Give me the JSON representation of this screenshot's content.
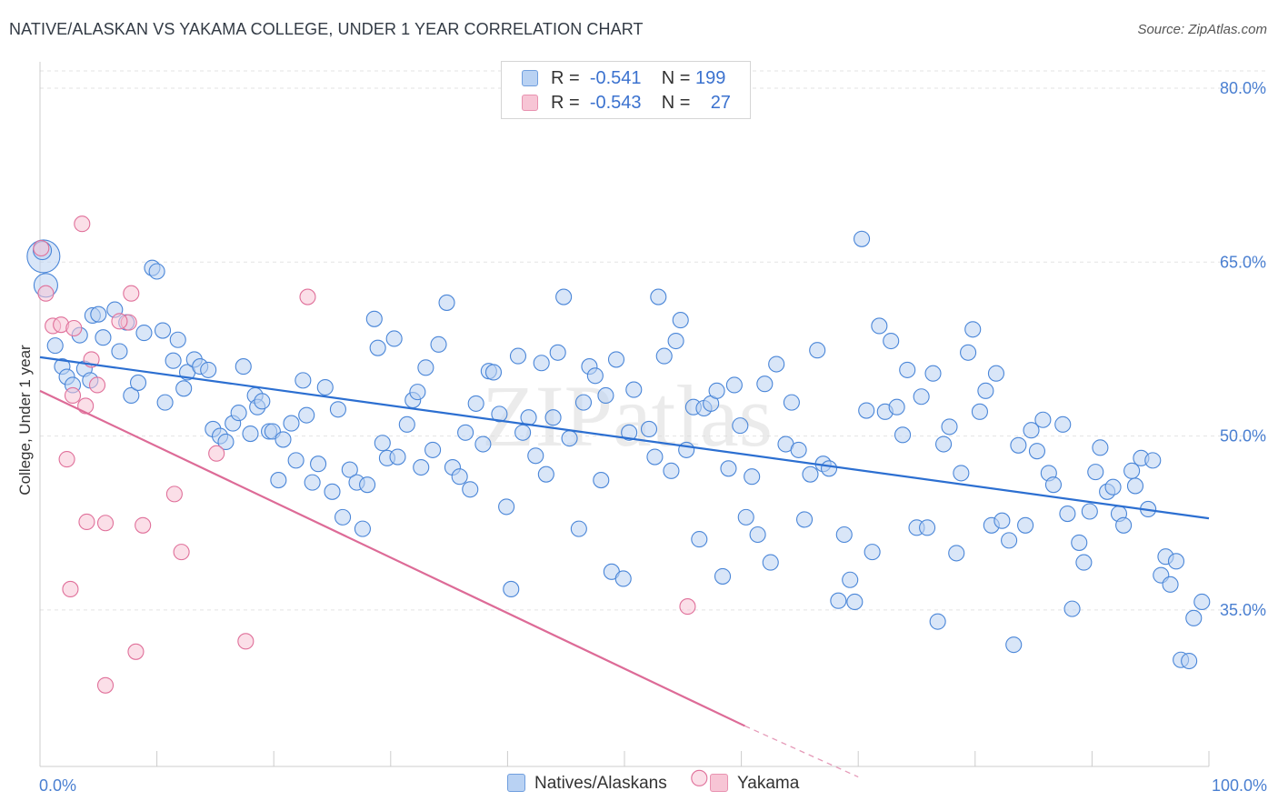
{
  "title": "NATIVE/ALASKAN VS YAKAMA COLLEGE, UNDER 1 YEAR CORRELATION CHART",
  "source": "Source: ZipAtlas.com",
  "watermark": "ZIPatlas",
  "colors": {
    "blue": "#4a86d8",
    "blue_fill": "#b9d2f3",
    "pink": "#e0709a",
    "pink_fill": "#f7c5d5",
    "tick": "#4a7fd1",
    "grid": "#e3e3e3"
  },
  "legend": {
    "rows": [
      {
        "r_label": "R =",
        "r_value": "-0.541",
        "n_label": "N =",
        "n_value": "199"
      },
      {
        "r_label": "R =",
        "r_value": "-0.543",
        "n_label": "N =",
        "n_value": "27"
      }
    ]
  },
  "bottom_legend": {
    "blue": "Natives/Alaskans",
    "pink": "Yakama"
  },
  "chart_data": {
    "type": "scatter",
    "title": "NATIVE/ALASKAN VS YAKAMA COLLEGE, UNDER 1 YEAR CORRELATION CHART",
    "xlabel": "",
    "ylabel": "College, Under 1 year",
    "xlim": [
      0,
      100
    ],
    "ylim": [
      20.5,
      83
    ],
    "x_tick_labels": [
      "0.0%",
      "100.0%"
    ],
    "y_ticks": [
      35,
      50,
      65,
      80
    ],
    "y_tick_labels": [
      "35.0%",
      "50.0%",
      "65.0%",
      "80.0%"
    ],
    "grid": "horizontal dashed",
    "legend_placement": "top-center",
    "series": [
      {
        "name": "Natives/Alaskans",
        "r": -0.541,
        "n": 199,
        "trend": {
          "x": [
            0,
            100
          ],
          "y": [
            56.8,
            42.9
          ]
        },
        "points": [
          [
            0.3,
            65.5
          ],
          [
            0.5,
            63.0
          ],
          [
            1.3,
            57.8
          ],
          [
            1.9,
            56.0
          ],
          [
            2.3,
            55.1
          ],
          [
            2.8,
            54.4
          ],
          [
            3.4,
            58.7
          ],
          [
            3.8,
            55.8
          ],
          [
            4.3,
            54.8
          ],
          [
            4.5,
            60.4
          ],
          [
            5.0,
            60.5
          ],
          [
            5.4,
            58.5
          ],
          [
            6.4,
            60.9
          ],
          [
            6.8,
            57.3
          ],
          [
            7.4,
            59.8
          ],
          [
            7.8,
            53.5
          ],
          [
            8.4,
            54.6
          ],
          [
            8.9,
            58.9
          ],
          [
            9.6,
            64.5
          ],
          [
            10.0,
            64.2
          ],
          [
            10.5,
            59.1
          ],
          [
            10.7,
            52.9
          ],
          [
            11.4,
            56.5
          ],
          [
            11.8,
            58.3
          ],
          [
            12.3,
            54.1
          ],
          [
            12.6,
            55.5
          ],
          [
            13.2,
            56.6
          ],
          [
            13.7,
            56.0
          ],
          [
            14.4,
            55.7
          ],
          [
            14.8,
            50.6
          ],
          [
            15.4,
            50.0
          ],
          [
            15.9,
            49.5
          ],
          [
            16.5,
            51.1
          ],
          [
            17.0,
            52.0
          ],
          [
            17.4,
            56.0
          ],
          [
            18.0,
            50.2
          ],
          [
            18.4,
            53.5
          ],
          [
            18.6,
            52.5
          ],
          [
            19.0,
            53.0
          ],
          [
            19.6,
            50.4
          ],
          [
            19.9,
            50.4
          ],
          [
            20.4,
            46.2
          ],
          [
            20.8,
            49.7
          ],
          [
            21.5,
            51.1
          ],
          [
            21.9,
            47.9
          ],
          [
            22.5,
            54.8
          ],
          [
            22.8,
            51.8
          ],
          [
            23.3,
            46.0
          ],
          [
            23.8,
            47.6
          ],
          [
            24.4,
            54.2
          ],
          [
            25.0,
            45.2
          ],
          [
            25.5,
            52.3
          ],
          [
            25.9,
            43.0
          ],
          [
            26.5,
            47.1
          ],
          [
            27.1,
            46.0
          ],
          [
            27.6,
            42.0
          ],
          [
            28.0,
            45.8
          ],
          [
            28.6,
            60.1
          ],
          [
            28.9,
            57.6
          ],
          [
            29.3,
            49.4
          ],
          [
            29.7,
            48.1
          ],
          [
            30.3,
            58.4
          ],
          [
            30.6,
            48.2
          ],
          [
            31.4,
            51.0
          ],
          [
            31.9,
            53.1
          ],
          [
            32.3,
            53.8
          ],
          [
            32.6,
            47.3
          ],
          [
            33.0,
            55.9
          ],
          [
            33.6,
            48.8
          ],
          [
            34.1,
            57.9
          ],
          [
            34.8,
            61.5
          ],
          [
            35.3,
            47.3
          ],
          [
            35.9,
            46.5
          ],
          [
            36.4,
            50.3
          ],
          [
            36.8,
            45.4
          ],
          [
            37.3,
            52.8
          ],
          [
            37.9,
            49.3
          ],
          [
            38.4,
            55.6
          ],
          [
            38.8,
            55.5
          ],
          [
            39.3,
            51.9
          ],
          [
            39.9,
            43.9
          ],
          [
            40.3,
            36.8
          ],
          [
            40.9,
            56.9
          ],
          [
            41.3,
            50.3
          ],
          [
            41.8,
            51.6
          ],
          [
            42.4,
            48.3
          ],
          [
            42.9,
            56.3
          ],
          [
            43.3,
            46.7
          ],
          [
            43.9,
            51.6
          ],
          [
            44.3,
            57.2
          ],
          [
            44.8,
            62.0
          ],
          [
            45.3,
            49.8
          ],
          [
            46.1,
            42.0
          ],
          [
            46.5,
            52.9
          ],
          [
            47.0,
            56.0
          ],
          [
            47.5,
            55.2
          ],
          [
            48.0,
            46.2
          ],
          [
            48.4,
            53.5
          ],
          [
            48.9,
            38.3
          ],
          [
            49.3,
            56.6
          ],
          [
            49.9,
            37.7
          ],
          [
            50.4,
            50.3
          ],
          [
            50.8,
            54.0
          ],
          [
            52.1,
            50.6
          ],
          [
            52.6,
            48.2
          ],
          [
            52.9,
            62.0
          ],
          [
            53.4,
            56.9
          ],
          [
            54.0,
            47.0
          ],
          [
            54.4,
            58.2
          ],
          [
            54.8,
            60.0
          ],
          [
            55.3,
            48.8
          ],
          [
            55.9,
            52.5
          ],
          [
            56.4,
            41.1
          ],
          [
            56.8,
            52.4
          ],
          [
            57.4,
            52.8
          ],
          [
            57.9,
            53.9
          ],
          [
            58.4,
            37.9
          ],
          [
            58.9,
            47.2
          ],
          [
            59.4,
            54.4
          ],
          [
            59.9,
            50.9
          ],
          [
            60.4,
            43.0
          ],
          [
            60.9,
            46.5
          ],
          [
            61.4,
            41.5
          ],
          [
            62.0,
            54.5
          ],
          [
            62.5,
            39.1
          ],
          [
            63.0,
            56.2
          ],
          [
            63.8,
            49.3
          ],
          [
            64.3,
            52.9
          ],
          [
            64.9,
            48.8
          ],
          [
            65.4,
            42.8
          ],
          [
            65.9,
            46.7
          ],
          [
            66.5,
            57.4
          ],
          [
            67.0,
            47.6
          ],
          [
            67.5,
            47.2
          ],
          [
            68.3,
            35.8
          ],
          [
            68.8,
            41.5
          ],
          [
            69.3,
            37.6
          ],
          [
            69.7,
            35.7
          ],
          [
            70.3,
            67.0
          ],
          [
            70.7,
            52.2
          ],
          [
            71.2,
            40.0
          ],
          [
            71.8,
            59.5
          ],
          [
            72.3,
            52.1
          ],
          [
            72.8,
            58.2
          ],
          [
            73.3,
            52.5
          ],
          [
            73.8,
            50.1
          ],
          [
            74.2,
            55.7
          ],
          [
            75.0,
            42.1
          ],
          [
            75.4,
            53.4
          ],
          [
            75.9,
            42.1
          ],
          [
            76.4,
            55.4
          ],
          [
            76.8,
            34.0
          ],
          [
            77.3,
            49.3
          ],
          [
            77.8,
            50.8
          ],
          [
            78.4,
            39.9
          ],
          [
            78.8,
            46.8
          ],
          [
            79.4,
            57.2
          ],
          [
            79.8,
            59.2
          ],
          [
            80.4,
            52.1
          ],
          [
            80.9,
            53.9
          ],
          [
            81.4,
            42.3
          ],
          [
            81.8,
            55.4
          ],
          [
            82.3,
            42.7
          ],
          [
            82.9,
            41.0
          ],
          [
            83.3,
            32.0
          ],
          [
            83.7,
            49.2
          ],
          [
            84.3,
            42.3
          ],
          [
            84.8,
            50.5
          ],
          [
            85.3,
            48.7
          ],
          [
            85.8,
            51.4
          ],
          [
            86.3,
            46.8
          ],
          [
            86.7,
            45.8
          ],
          [
            87.5,
            51.0
          ],
          [
            87.9,
            43.3
          ],
          [
            88.3,
            35.1
          ],
          [
            88.9,
            40.8
          ],
          [
            89.3,
            39.1
          ],
          [
            89.8,
            43.5
          ],
          [
            90.3,
            46.9
          ],
          [
            90.7,
            49.0
          ],
          [
            91.3,
            45.2
          ],
          [
            91.8,
            45.6
          ],
          [
            92.3,
            43.3
          ],
          [
            92.7,
            42.3
          ],
          [
            93.4,
            47.0
          ],
          [
            93.7,
            45.7
          ],
          [
            94.2,
            48.1
          ],
          [
            94.8,
            43.7
          ],
          [
            95.2,
            47.9
          ],
          [
            95.9,
            38.0
          ],
          [
            96.3,
            39.6
          ],
          [
            96.7,
            37.2
          ],
          [
            97.2,
            39.2
          ],
          [
            97.6,
            30.7
          ],
          [
            98.3,
            30.6
          ],
          [
            98.7,
            34.3
          ],
          [
            99.4,
            35.7
          ],
          [
            0.2,
            66.0
          ]
        ]
      },
      {
        "name": "Yakama",
        "r": -0.543,
        "n": 27,
        "trend": {
          "x": [
            0,
            60.3
          ],
          "y": [
            53.9,
            25.0
          ]
        },
        "trend_dashed": {
          "x": [
            60.3,
            70.0
          ],
          "y": [
            25.0,
            20.6
          ]
        },
        "points": [
          [
            0.1,
            66.2
          ],
          [
            0.5,
            62.3
          ],
          [
            1.1,
            59.5
          ],
          [
            1.8,
            59.6
          ],
          [
            2.3,
            48.0
          ],
          [
            2.6,
            36.8
          ],
          [
            2.8,
            53.5
          ],
          [
            2.9,
            59.3
          ],
          [
            3.6,
            68.3
          ],
          [
            3.9,
            52.6
          ],
          [
            4.0,
            42.6
          ],
          [
            4.4,
            56.6
          ],
          [
            5.6,
            42.5
          ],
          [
            4.9,
            54.4
          ],
          [
            5.6,
            28.5
          ],
          [
            7.6,
            59.8
          ],
          [
            7.8,
            62.3
          ],
          [
            8.2,
            31.4
          ],
          [
            8.8,
            42.3
          ],
          [
            11.5,
            45.0
          ],
          [
            12.1,
            40.0
          ],
          [
            15.1,
            48.5
          ],
          [
            17.6,
            32.3
          ],
          [
            22.9,
            62.0
          ],
          [
            55.4,
            35.3
          ],
          [
            56.4,
            20.5
          ],
          [
            6.8,
            59.9
          ]
        ]
      }
    ]
  }
}
